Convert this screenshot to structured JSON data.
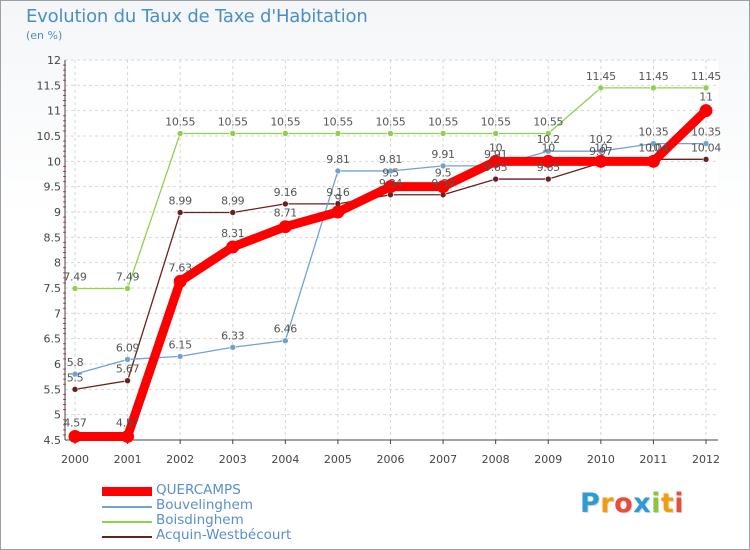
{
  "chart_data": {
    "type": "line",
    "title": "Evolution du Taux de Taxe d'Habitation",
    "subtitle": "(en %)",
    "x": [
      2000,
      2001,
      2002,
      2003,
      2004,
      2005,
      2006,
      2007,
      2008,
      2009,
      2010,
      2011,
      2012
    ],
    "ylim": [
      4.5,
      12
    ],
    "yticks": [
      "4.5",
      "5",
      "5.5",
      "6",
      "6.5",
      "7",
      "7.5",
      "8",
      "8.5",
      "9",
      "9.5",
      "10",
      "10.5",
      "11",
      "11.5",
      "12"
    ],
    "grid": true,
    "legend_position": "bottom-left",
    "series": [
      {
        "name": "Acquin-Westbécourt",
        "color": "#6b1f1f",
        "values": [
          5.5,
          5.67,
          8.99,
          8.99,
          9.16,
          9.16,
          9.34,
          9.34,
          9.65,
          9.65,
          9.97,
          10.04,
          10.04
        ],
        "labels": [
          "5.5",
          "5.67",
          "8.99",
          "8.99",
          "9.16",
          "9.16",
          "9.34",
          "9.34",
          "9.65",
          "9.65",
          "9.97",
          "10.04",
          "10.04"
        ]
      },
      {
        "name": "Boisdinghem",
        "color": "#8fd14f",
        "values": [
          7.49,
          7.49,
          10.55,
          10.55,
          10.55,
          10.55,
          10.55,
          10.55,
          10.55,
          10.55,
          11.45,
          11.45,
          11.45
        ],
        "labels": [
          "7.49",
          "7.49",
          "10.55",
          "10.55",
          "10.55",
          "10.55",
          "10.55",
          "10.55",
          "10.55",
          "10.55",
          "11.45",
          "11.45",
          "11.45"
        ]
      },
      {
        "name": "Bouvelinghem",
        "color": "#6fa3d2",
        "values": [
          5.8,
          6.09,
          6.15,
          6.33,
          6.46,
          9.81,
          9.81,
          9.91,
          9.91,
          10.2,
          10.2,
          10.35,
          10.35
        ],
        "labels": [
          "5.8",
          "6.09",
          "6.15",
          "6.33",
          "6.46",
          "9.81",
          "9.81",
          "9.91",
          "9.91",
          "10.2",
          "10.2",
          "10.35",
          "10.35"
        ]
      },
      {
        "name": "QUERCAMPS",
        "color": "#ff0000",
        "values": [
          4.57,
          4.57,
          7.63,
          8.31,
          8.71,
          9.0,
          9.5,
          9.5,
          10.0,
          10.0,
          10.0,
          10.0,
          11.0
        ],
        "labels": [
          "4.57",
          "4.57",
          "7.63",
          "8.31",
          "8.71",
          "9",
          "9.5",
          "9.5",
          "10",
          "10",
          "10",
          "10",
          "11"
        ]
      }
    ],
    "legend": [
      "QUERCAMPS",
      "Bouvelinghem",
      "Boisdinghem",
      "Acquin-Westbécourt"
    ]
  },
  "logo": {
    "letters": [
      "P",
      "r",
      "o",
      "x",
      "i",
      "t",
      "i"
    ],
    "colors": [
      "#2f9ad6",
      "#f39c12",
      "#e74c3c",
      "#2f9ad6",
      "#8cc63f",
      "#f39c12",
      "#e74c3c"
    ]
  }
}
